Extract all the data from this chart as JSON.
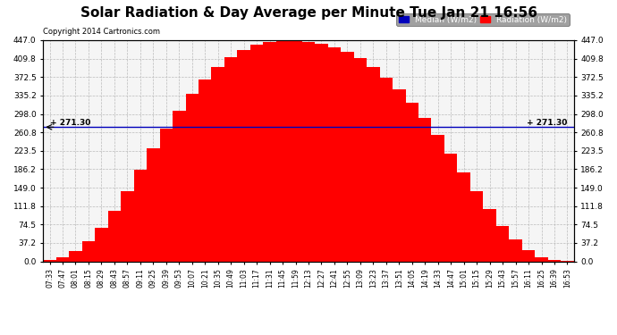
{
  "title": "Solar Radiation & Day Average per Minute Tue Jan 21 16:56",
  "copyright": "Copyright 2014 Cartronics.com",
  "median_value": 271.3,
  "y_max": 447.0,
  "y_min": 0.0,
  "y_ticks": [
    0.0,
    37.2,
    74.5,
    111.8,
    149.0,
    186.2,
    223.5,
    260.8,
    298.0,
    335.2,
    372.5,
    409.8,
    447.0
  ],
  "legend_median_label": "Median (W/m2)",
  "legend_radiation_label": "Radiation (W/m2)",
  "legend_median_color": "#0000bb",
  "legend_radiation_color": "#ff0000",
  "fill_color": "#ff0000",
  "line_color": "#0000bb",
  "background_color": "#ffffff",
  "plot_bg_color": "#f5f5f5",
  "grid_color": "#bbbbbb",
  "title_fontsize": 11,
  "x_labels": [
    "07:33",
    "07:47",
    "08:01",
    "08:15",
    "08:29",
    "08:43",
    "08:57",
    "09:11",
    "09:25",
    "09:39",
    "09:53",
    "10:07",
    "10:21",
    "10:35",
    "10:49",
    "11:03",
    "11:17",
    "11:31",
    "11:45",
    "11:59",
    "12:13",
    "12:27",
    "12:41",
    "12:55",
    "13:09",
    "13:23",
    "13:37",
    "13:51",
    "14:05",
    "14:19",
    "14:33",
    "14:47",
    "15:01",
    "15:15",
    "15:29",
    "15:43",
    "15:57",
    "16:11",
    "16:25",
    "16:39",
    "16:53"
  ],
  "radiation_values": [
    3,
    8,
    20,
    40,
    68,
    102,
    142,
    185,
    228,
    268,
    305,
    338,
    368,
    393,
    413,
    428,
    438,
    443,
    447,
    446,
    444,
    440,
    433,
    423,
    410,
    393,
    372,
    348,
    320,
    289,
    255,
    218,
    180,
    142,
    105,
    72,
    44,
    22,
    9,
    3,
    1
  ],
  "median_label": "+ 271.30"
}
